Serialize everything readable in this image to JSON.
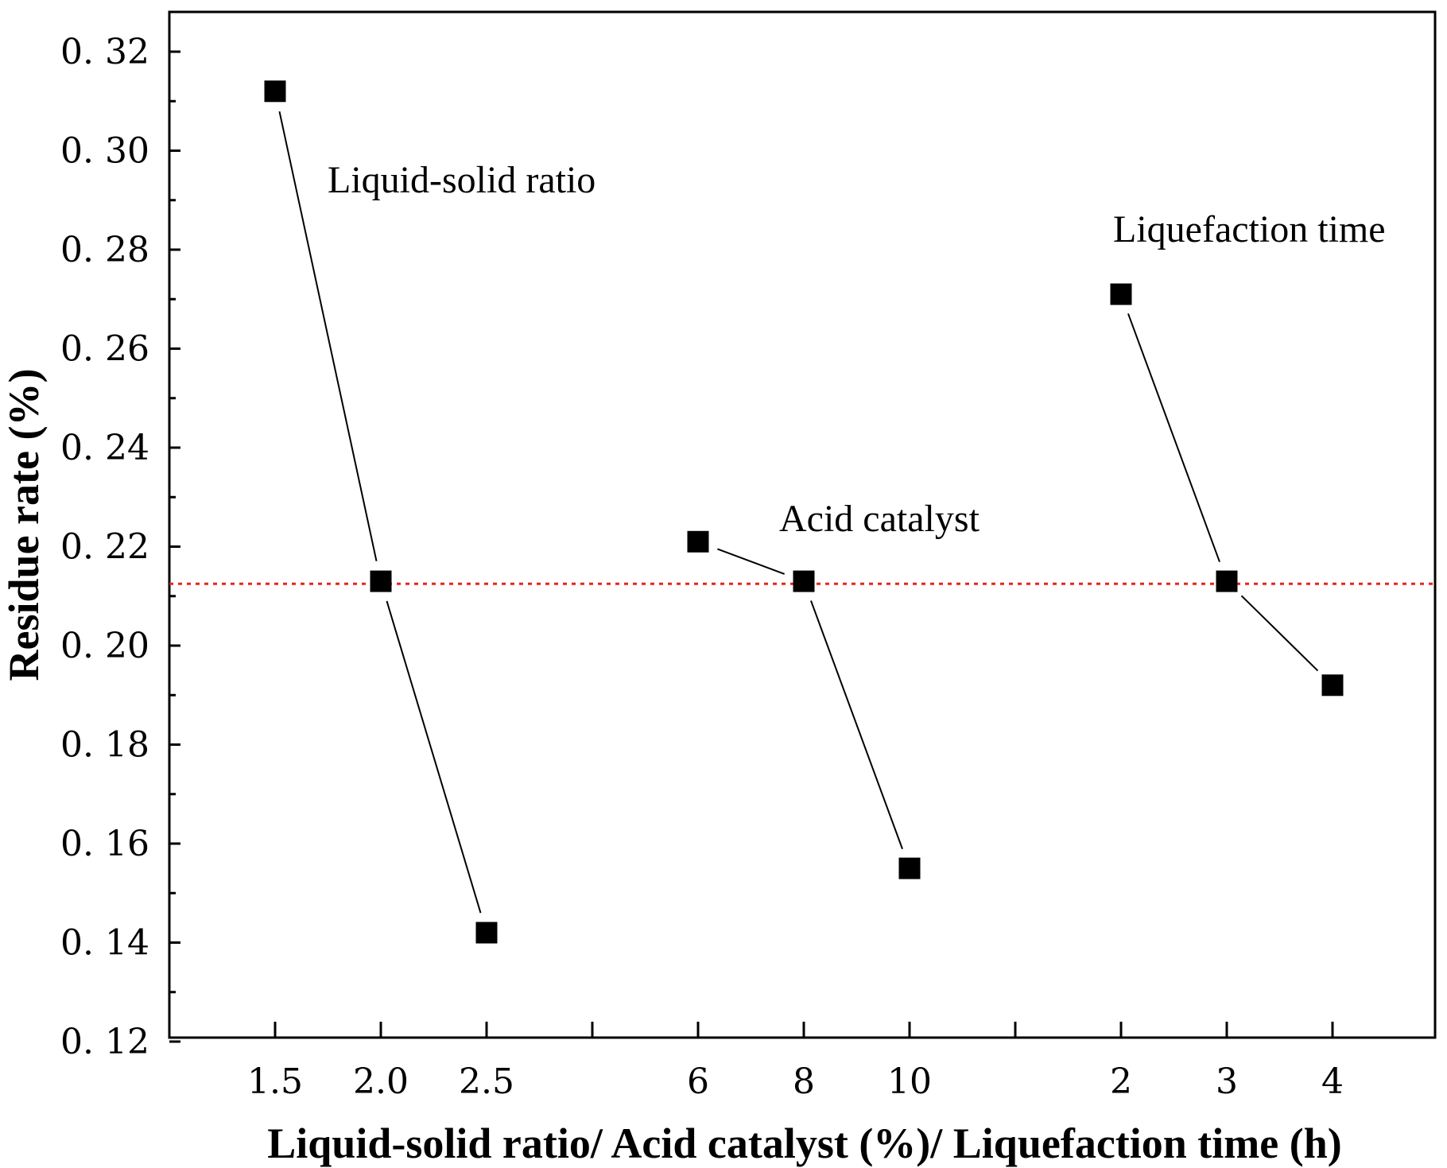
{
  "chart_data": {
    "type": "scatter",
    "title": "",
    "xlabel": "Liquid-solid ratio/ Acid catalyst (%)/ Liquefaction time (h)",
    "ylabel": "Residue rate (%)",
    "ylim": [
      0.12,
      0.33
    ],
    "yticks": [
      "0.12",
      "0.14",
      "0.16",
      "0.18",
      "0.20",
      "0.22",
      "0.24",
      "0.26",
      "0.28",
      "0.30",
      "0.32"
    ],
    "x_positions": [
      1,
      2,
      3,
      4,
      5,
      6,
      7,
      8,
      9,
      10,
      11,
      12
    ],
    "xlim": [
      0,
      12
    ],
    "xticks": [
      {
        "pos": 1,
        "label": "1.5"
      },
      {
        "pos": 2,
        "label": "2.0"
      },
      {
        "pos": 3,
        "label": "2.5"
      },
      {
        "pos": 4,
        "label": ""
      },
      {
        "pos": 5,
        "label": "6"
      },
      {
        "pos": 6,
        "label": "8"
      },
      {
        "pos": 7,
        "label": "10"
      },
      {
        "pos": 8,
        "label": ""
      },
      {
        "pos": 9,
        "label": "2"
      },
      {
        "pos": 10,
        "label": "3"
      },
      {
        "pos": 11,
        "label": "4"
      }
    ],
    "series": [
      {
        "name": "Liquid-solid ratio",
        "x": [
          1,
          2,
          3
        ],
        "values": [
          0.312,
          0.213,
          0.142
        ]
      },
      {
        "name": "Acid catalyst",
        "x": [
          5,
          6,
          7
        ],
        "values": [
          0.221,
          0.213,
          0.155
        ]
      },
      {
        "name": "Liquefaction time",
        "x": [
          9,
          10,
          11
        ],
        "values": [
          0.271,
          0.213,
          0.192
        ]
      }
    ],
    "annotations": [
      {
        "text": "Liquid-solid ratio",
        "series": 0
      },
      {
        "text": "Acid catalyst",
        "series": 1
      },
      {
        "text": "Liquefaction time",
        "series": 2
      }
    ],
    "reference_line": {
      "value": 0.2125,
      "color": "#e8231c",
      "style": "dotted"
    },
    "marker": "square",
    "grid": false
  }
}
